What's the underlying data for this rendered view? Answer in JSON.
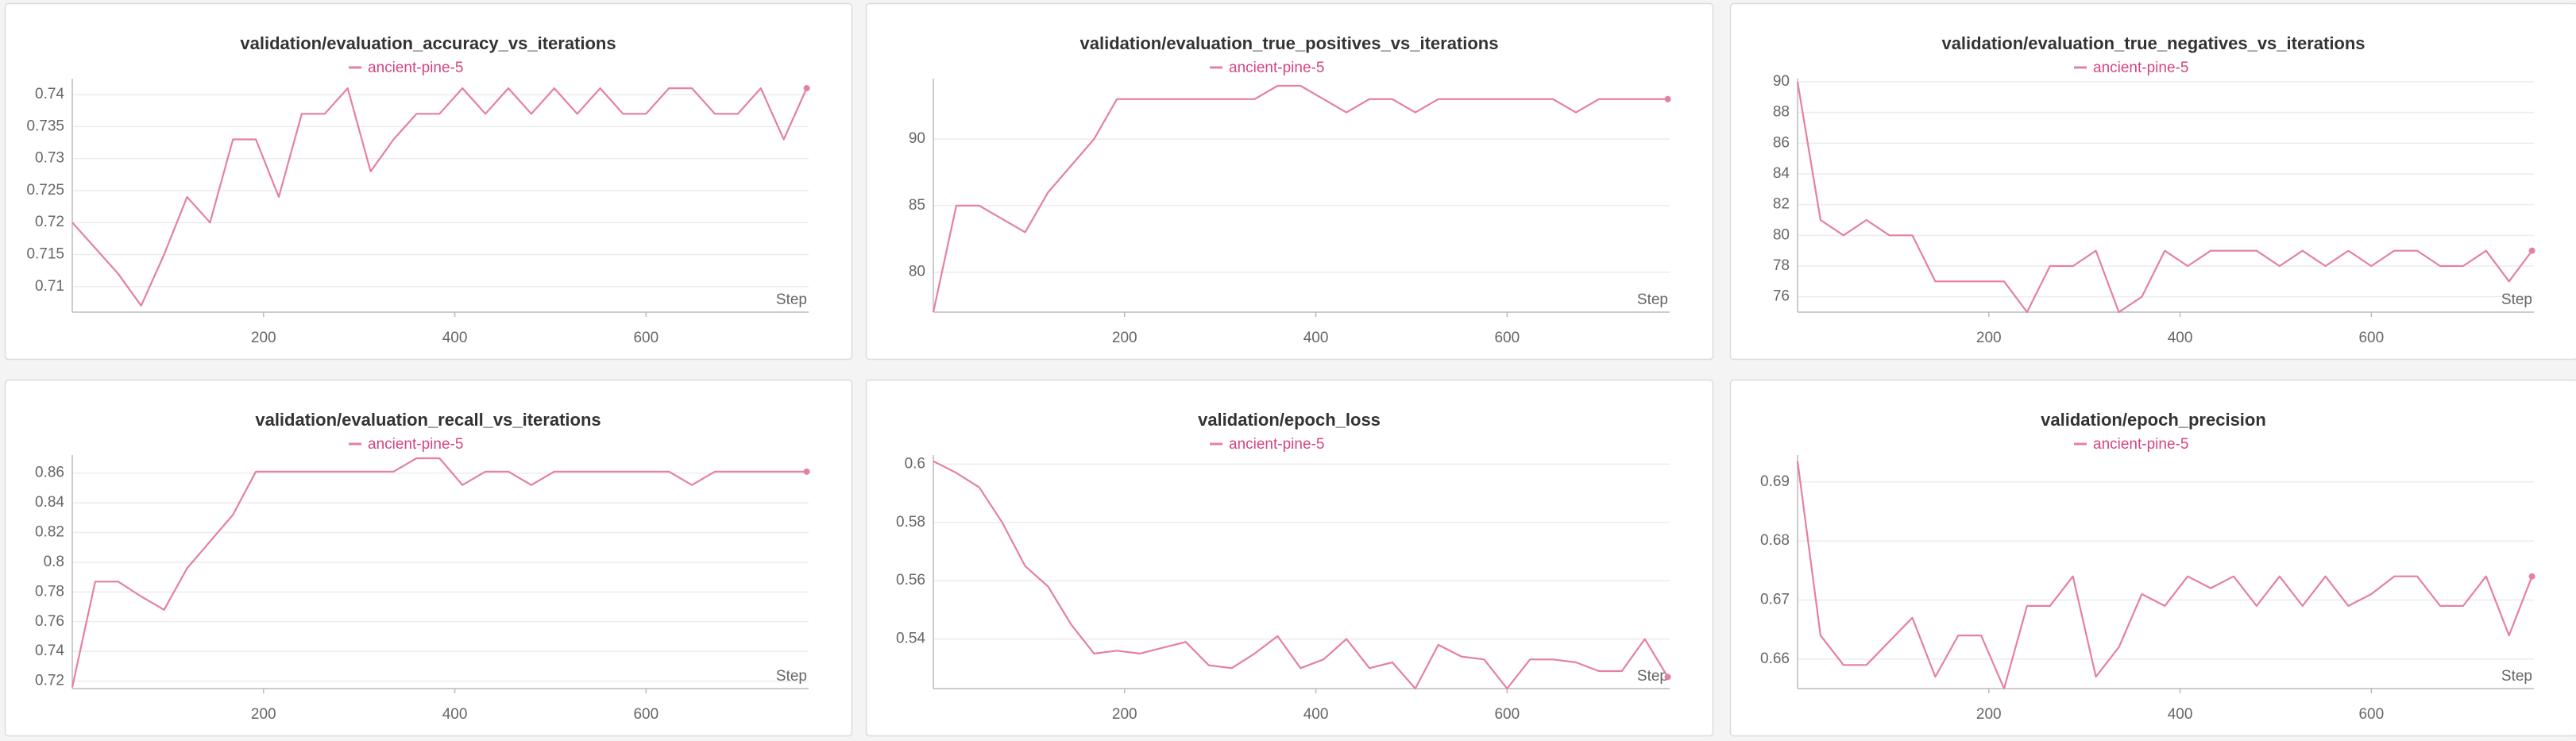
{
  "chart_data": [
    {
      "type": "line",
      "title": "validation/evaluation_accuracy_vs_iterations",
      "xlabel": "Step",
      "x": [
        0,
        24,
        48,
        72,
        96,
        120,
        144,
        168,
        192,
        216,
        240,
        264,
        288,
        312,
        336,
        360,
        384,
        408,
        432,
        456,
        480,
        504,
        528,
        552,
        576,
        600,
        624,
        648,
        672,
        696,
        720,
        744,
        768
      ],
      "xlim": [
        0,
        770
      ],
      "xticks": [
        200,
        400,
        600
      ],
      "ylim": [
        0.706,
        0.742
      ],
      "yticks": [
        0.71,
        0.715,
        0.72,
        0.725,
        0.73,
        0.735,
        0.74
      ],
      "grid": true,
      "series": [
        {
          "name": "ancient-pine-5",
          "color": "#e57fa5",
          "values": [
            0.72,
            0.716,
            0.712,
            0.707,
            0.715,
            0.724,
            0.72,
            0.733,
            0.733,
            0.724,
            0.737,
            0.737,
            0.741,
            0.728,
            0.733,
            0.737,
            0.737,
            0.741,
            0.737,
            0.741,
            0.737,
            0.741,
            0.737,
            0.741,
            0.737,
            0.737,
            0.741,
            0.741,
            0.737,
            0.737,
            0.741,
            0.733,
            0.741
          ]
        }
      ]
    },
    {
      "type": "line",
      "title": "validation/evaluation_true_positives_vs_iterations",
      "xlabel": "Step",
      "x": [
        0,
        24,
        48,
        72,
        96,
        120,
        144,
        168,
        192,
        216,
        240,
        264,
        288,
        312,
        336,
        360,
        384,
        408,
        432,
        456,
        480,
        504,
        528,
        552,
        576,
        600,
        624,
        648,
        672,
        696,
        720,
        744,
        768
      ],
      "xlim": [
        0,
        770
      ],
      "xticks": [
        200,
        400,
        600
      ],
      "ylim": [
        77,
        94.3
      ],
      "yticks": [
        80,
        85,
        90
      ],
      "grid": true,
      "series": [
        {
          "name": "ancient-pine-5",
          "color": "#e57fa5",
          "values": [
            77,
            85,
            85,
            84,
            83,
            86,
            88,
            90,
            93,
            93,
            93,
            93,
            93,
            93,
            93,
            94,
            94,
            93,
            92,
            93,
            93,
            92,
            93,
            93,
            93,
            93,
            93,
            93,
            92,
            93,
            93,
            93,
            93
          ]
        }
      ]
    },
    {
      "type": "line",
      "title": "validation/evaluation_true_negatives_vs_iterations",
      "xlabel": "Step",
      "x": [
        0,
        24,
        48,
        72,
        96,
        120,
        144,
        168,
        192,
        216,
        240,
        264,
        288,
        312,
        336,
        360,
        384,
        408,
        432,
        456,
        480,
        504,
        528,
        552,
        576,
        600,
        624,
        648,
        672,
        696,
        720,
        744,
        768
      ],
      "xlim": [
        0,
        770
      ],
      "xticks": [
        200,
        400,
        600
      ],
      "ylim": [
        75,
        90
      ],
      "yticks": [
        76,
        78,
        80,
        82,
        84,
        86,
        88,
        90
      ],
      "grid": true,
      "series": [
        {
          "name": "ancient-pine-5",
          "color": "#e57fa5",
          "values": [
            90,
            81,
            80,
            81,
            80,
            80,
            77,
            77,
            77,
            77,
            75,
            78,
            78,
            79,
            75,
            76,
            79,
            78,
            79,
            79,
            79,
            78,
            79,
            78,
            79,
            78,
            79,
            79,
            78,
            78,
            79,
            77,
            79
          ]
        }
      ]
    },
    {
      "type": "line",
      "title": "validation/evaluation_recall_vs_iterations",
      "xlabel": "Step",
      "x": [
        0,
        24,
        48,
        72,
        96,
        120,
        144,
        168,
        192,
        216,
        240,
        264,
        288,
        312,
        336,
        360,
        384,
        408,
        432,
        456,
        480,
        504,
        528,
        552,
        576,
        600,
        624,
        648,
        672,
        696,
        720,
        744,
        768
      ],
      "xlim": [
        0,
        770
      ],
      "xticks": [
        200,
        400,
        600
      ],
      "ylim": [
        0.715,
        0.87
      ],
      "yticks": [
        0.72,
        0.74,
        0.76,
        0.78,
        0.8,
        0.82,
        0.84,
        0.86
      ],
      "grid": true,
      "series": [
        {
          "name": "ancient-pine-5",
          "color": "#e57fa5",
          "values": [
            0.716,
            0.787,
            0.787,
            0.777,
            0.768,
            0.796,
            0.814,
            0.832,
            0.861,
            0.861,
            0.861,
            0.861,
            0.861,
            0.861,
            0.861,
            0.87,
            0.87,
            0.852,
            0.861,
            0.861,
            0.852,
            0.861,
            0.861,
            0.861,
            0.861,
            0.861,
            0.861,
            0.852,
            0.861,
            0.861,
            0.861,
            0.861,
            0.861
          ]
        }
      ]
    },
    {
      "type": "line",
      "title": "validation/epoch_loss",
      "xlabel": "Step",
      "x": [
        0,
        24,
        48,
        72,
        96,
        120,
        144,
        168,
        192,
        216,
        240,
        264,
        288,
        312,
        336,
        360,
        384,
        408,
        432,
        456,
        480,
        504,
        528,
        552,
        576,
        600,
        624,
        648,
        672,
        696,
        720,
        744,
        768
      ],
      "xlim": [
        0,
        770
      ],
      "xticks": [
        200,
        400,
        600
      ],
      "ylim": [
        0.523,
        0.602
      ],
      "yticks": [
        0.54,
        0.56,
        0.58,
        0.6
      ],
      "grid": true,
      "series": [
        {
          "name": "ancient-pine-5",
          "color": "#e57fa5",
          "values": [
            0.601,
            0.597,
            0.592,
            0.58,
            0.565,
            0.558,
            0.545,
            0.535,
            0.536,
            0.535,
            0.537,
            0.539,
            0.531,
            0.53,
            0.535,
            0.541,
            0.53,
            0.533,
            0.54,
            0.53,
            0.532,
            0.523,
            0.538,
            0.534,
            0.533,
            0.523,
            0.533,
            0.533,
            0.532,
            0.529,
            0.529,
            0.54,
            0.527
          ]
        }
      ]
    },
    {
      "type": "line",
      "title": "validation/epoch_precision",
      "xlabel": "Step",
      "x": [
        0,
        24,
        48,
        72,
        96,
        120,
        144,
        168,
        192,
        216,
        240,
        264,
        288,
        312,
        336,
        360,
        384,
        408,
        432,
        456,
        480,
        504,
        528,
        552,
        576,
        600,
        624,
        648,
        672,
        696,
        720,
        744,
        768
      ],
      "xlim": [
        0,
        770
      ],
      "xticks": [
        200,
        400,
        600
      ],
      "ylim": [
        0.655,
        0.694
      ],
      "yticks": [
        0.66,
        0.67,
        0.68,
        0.69
      ],
      "grid": true,
      "series": [
        {
          "name": "ancient-pine-5",
          "color": "#e57fa5",
          "values": [
            0.6935,
            0.664,
            0.659,
            0.659,
            0.663,
            0.667,
            0.657,
            0.664,
            0.664,
            0.655,
            0.669,
            0.669,
            0.674,
            0.657,
            0.662,
            0.671,
            0.669,
            0.674,
            0.672,
            0.674,
            0.669,
            0.674,
            0.669,
            0.674,
            0.669,
            0.671,
            0.674,
            0.674,
            0.669,
            0.669,
            0.674,
            0.664,
            0.674
          ]
        }
      ]
    }
  ]
}
